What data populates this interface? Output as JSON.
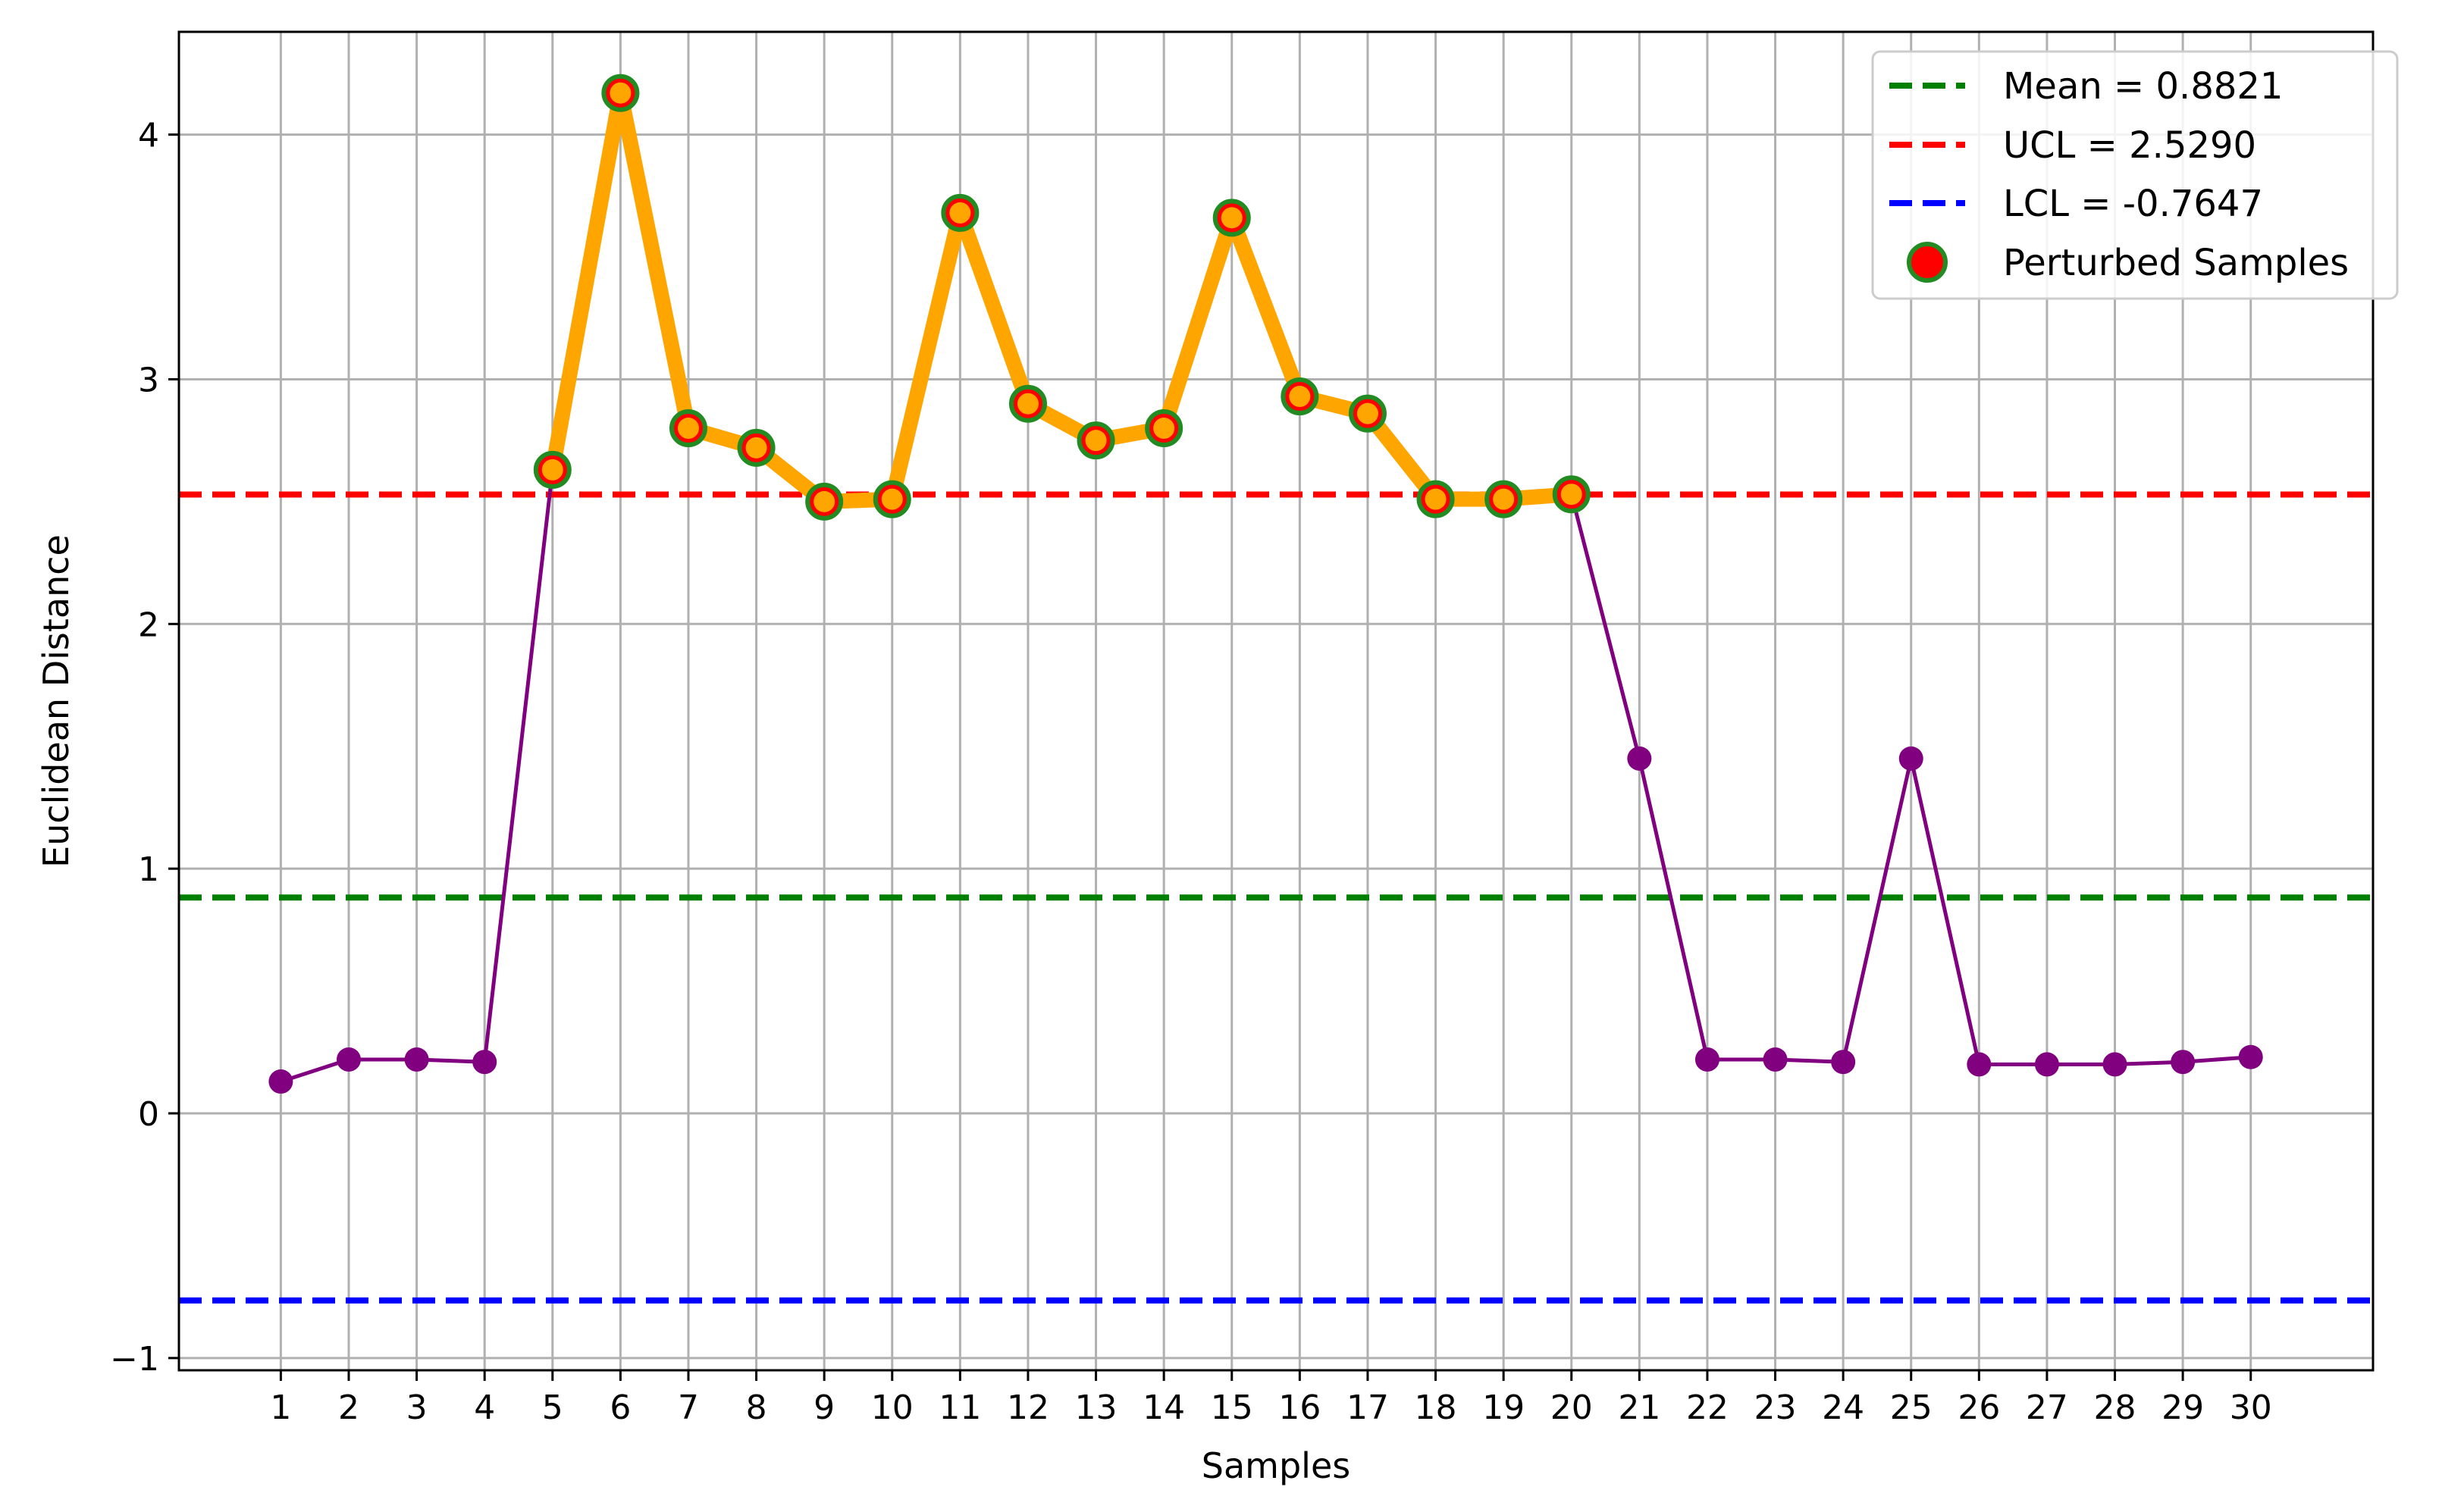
{
  "chart_data": {
    "type": "line",
    "title": "",
    "xlabel": "Samples",
    "ylabel": "Euclidean Distance",
    "x": [
      1,
      2,
      3,
      4,
      5,
      6,
      7,
      8,
      9,
      10,
      11,
      12,
      13,
      14,
      15,
      16,
      17,
      18,
      19,
      20,
      21,
      22,
      23,
      24,
      25,
      26,
      27,
      28,
      29,
      30
    ],
    "xlim": [
      -0.5,
      31.8
    ],
    "ylim": [
      -1.05,
      4.42
    ],
    "yticks": [
      -1,
      0,
      1,
      2,
      3,
      4
    ],
    "ytick_labels": [
      "−1",
      "0",
      "1",
      "2",
      "3",
      "4"
    ],
    "grid": true,
    "legend_placement": "top-right",
    "series": [
      {
        "kind": "line",
        "color": "#800080",
        "values": [
          0.13,
          0.22,
          0.22,
          0.21,
          2.63,
          4.17,
          2.8,
          2.72,
          2.5,
          2.51,
          3.68,
          2.9,
          2.75,
          2.8,
          3.66,
          2.93,
          2.86,
          2.51,
          2.51,
          2.53,
          1.45,
          0.22,
          0.22,
          0.21,
          1.45,
          0.2,
          0.2,
          0.2,
          0.21,
          0.23
        ]
      },
      {
        "name": "Perturbed Samples",
        "kind": "scatter",
        "color": "#ff0000",
        "edge_color": "#228b22",
        "highlight_line_color": "#ffa500",
        "x": [
          5,
          6,
          7,
          8,
          9,
          10,
          11,
          12,
          13,
          14,
          15,
          16,
          17,
          18,
          19,
          20
        ],
        "values": [
          2.63,
          4.17,
          2.8,
          2.72,
          2.5,
          2.51,
          3.68,
          2.9,
          2.75,
          2.8,
          3.66,
          2.93,
          2.86,
          2.51,
          2.51,
          2.53
        ]
      }
    ],
    "hlines": [
      {
        "name": "Mean = 0.8821",
        "value": 0.8821,
        "color": "#008000",
        "style": "dashed"
      },
      {
        "name": "UCL = 2.5290",
        "value": 2.529,
        "color": "#ff0000",
        "style": "dashed"
      },
      {
        "name": "LCL = -0.7647",
        "value": -0.7647,
        "color": "#0000ff",
        "style": "dashed"
      }
    ]
  }
}
